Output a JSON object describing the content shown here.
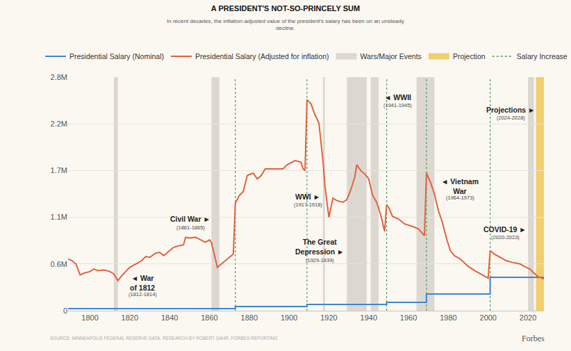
{
  "chart_data": {
    "type": "line",
    "title": "A PRESIDENT'S NOT-SO-PRINCELY SUM",
    "subtitle": "In recent decades, the inflation-adjusted value of the president's salary has been on an unsteady\ndecline.",
    "source": "SOURCE: MINNEAPOLIS FEDERAL RESERVE DATA. RESEARCH BY ROBERT SAHR. FORBES REPORTING",
    "credit": "Forbes",
    "xlim": [
      1789,
      2028
    ],
    "xticks": [
      1800,
      1820,
      1840,
      1860,
      1880,
      1900,
      1920,
      1940,
      1960,
      1980,
      2000,
      2020
    ],
    "ylim": [
      0,
      2800000
    ],
    "yticks": [
      0,
      {
        "value": 560000,
        "label": "0.6M"
      },
      {
        "value": 1120000,
        "label": "1.1M"
      },
      {
        "value": 1680000,
        "label": "1.7M"
      },
      {
        "value": 2240000,
        "label": "2.2M"
      },
      {
        "value": 2800000,
        "label": "2.8M"
      }
    ],
    "grid": true,
    "legend": "top left",
    "series": [
      {
        "name": "Presidential Salary (Nominal)",
        "color": "#3d85d1",
        "line_style": "step",
        "x": [
          1789,
          1873,
          1909,
          1949,
          1969,
          2001,
          2028
        ],
        "values": [
          25000,
          50000,
          75000,
          100000,
          200000,
          400000,
          400000
        ]
      },
      {
        "name": "Presidential Salary (Adjusted for inflation)",
        "color": "#e4613d",
        "line_style": "solid",
        "x": [
          1789,
          1791,
          1793,
          1795,
          1797,
          1800,
          1802,
          1804,
          1807,
          1810,
          1812,
          1814,
          1816,
          1818,
          1820,
          1823,
          1826,
          1828,
          1830,
          1833,
          1835,
          1837,
          1840,
          1842,
          1845,
          1847,
          1848,
          1850,
          1853,
          1856,
          1858,
          1860,
          1861,
          1863,
          1864,
          1866,
          1868,
          1870,
          1872,
          1873,
          1875,
          1877,
          1879,
          1882,
          1884,
          1886,
          1888,
          1892,
          1897,
          1899,
          1903,
          1906,
          1907,
          1908,
          1909,
          1911,
          1913,
          1915,
          1917,
          1918,
          1920,
          1922,
          1924,
          1927,
          1929,
          1931,
          1933,
          1934,
          1936,
          1938,
          1940,
          1942,
          1944,
          1946,
          1948,
          1949,
          1950,
          1952,
          1955,
          1958,
          1962,
          1965,
          1968,
          1969,
          1971,
          1973,
          1975,
          1977,
          1979,
          1981,
          1983,
          1986,
          1990,
          1994,
          1998,
          2000,
          2001,
          2003,
          2006,
          2009,
          2012,
          2016,
          2019,
          2021,
          2023,
          2025,
          2028
        ],
        "values": [
          620000,
          600000,
          560000,
          430000,
          450000,
          470000,
          500000,
          480000,
          490000,
          470000,
          440000,
          360000,
          420000,
          470000,
          520000,
          560000,
          600000,
          650000,
          640000,
          690000,
          700000,
          660000,
          720000,
          760000,
          780000,
          790000,
          880000,
          870000,
          880000,
          840000,
          820000,
          850000,
          820000,
          620000,
          520000,
          560000,
          600000,
          640000,
          680000,
          1290000,
          1380000,
          1430000,
          1620000,
          1650000,
          1580000,
          1620000,
          1700000,
          1700000,
          1700000,
          1750000,
          1800000,
          1780000,
          1700000,
          1680000,
          2530000,
          2480000,
          2350000,
          2250000,
          1800000,
          1500000,
          1120000,
          1350000,
          1320000,
          1300000,
          1330000,
          1450000,
          1600000,
          1750000,
          1680000,
          1640000,
          1580000,
          1380000,
          1300000,
          1150000,
          950000,
          1270000,
          1240000,
          1130000,
          1100000,
          1040000,
          1010000,
          980000,
          900000,
          1650000,
          1540000,
          1400000,
          1200000,
          1060000,
          870000,
          720000,
          660000,
          620000,
          530000,
          470000,
          420000,
          390000,
          720000,
          680000,
          640000,
          600000,
          580000,
          560000,
          520000,
          500000,
          450000,
          410000,
          380000
        ]
      }
    ],
    "events": {
      "name": "Wars/Major Events",
      "color": "#dcd8d1",
      "items": [
        {
          "label": "◄ War\nof 1812",
          "dates": "(1812-1814)",
          "start": 1812,
          "end": 1814
        },
        {
          "label": "Civil War ►",
          "dates": "(1861-1865)",
          "start": 1861,
          "end": 1865
        },
        {
          "label": "WWI ►",
          "dates": "(1917-1918)",
          "start": 1917,
          "end": 1918
        },
        {
          "label": "The Great\nDepression ►",
          "dates": "(1929-1939)",
          "start": 1929,
          "end": 1939
        },
        {
          "label": "◄ WWII",
          "dates": "(1941-1945)",
          "start": 1941,
          "end": 1945
        },
        {
          "label": "◄ Vietnam\nWar",
          "dates": "(1964-1973)",
          "start": 1964,
          "end": 1973
        },
        {
          "label": "COVID-19 ►",
          "dates": "(2020-2023)",
          "start": 2020,
          "end": 2023
        }
      ]
    },
    "projection": {
      "name": "Projection",
      "color": "#f1cf6e",
      "label": "Projections ►",
      "dates": "(2024-2028)",
      "start": 2024,
      "end": 2028
    },
    "salary_increase": {
      "name": "Salary Increase",
      "color": "#4e9b5c",
      "line_style": "dotted",
      "x": [
        1873,
        1909,
        1949,
        1969,
        2001
      ]
    }
  }
}
